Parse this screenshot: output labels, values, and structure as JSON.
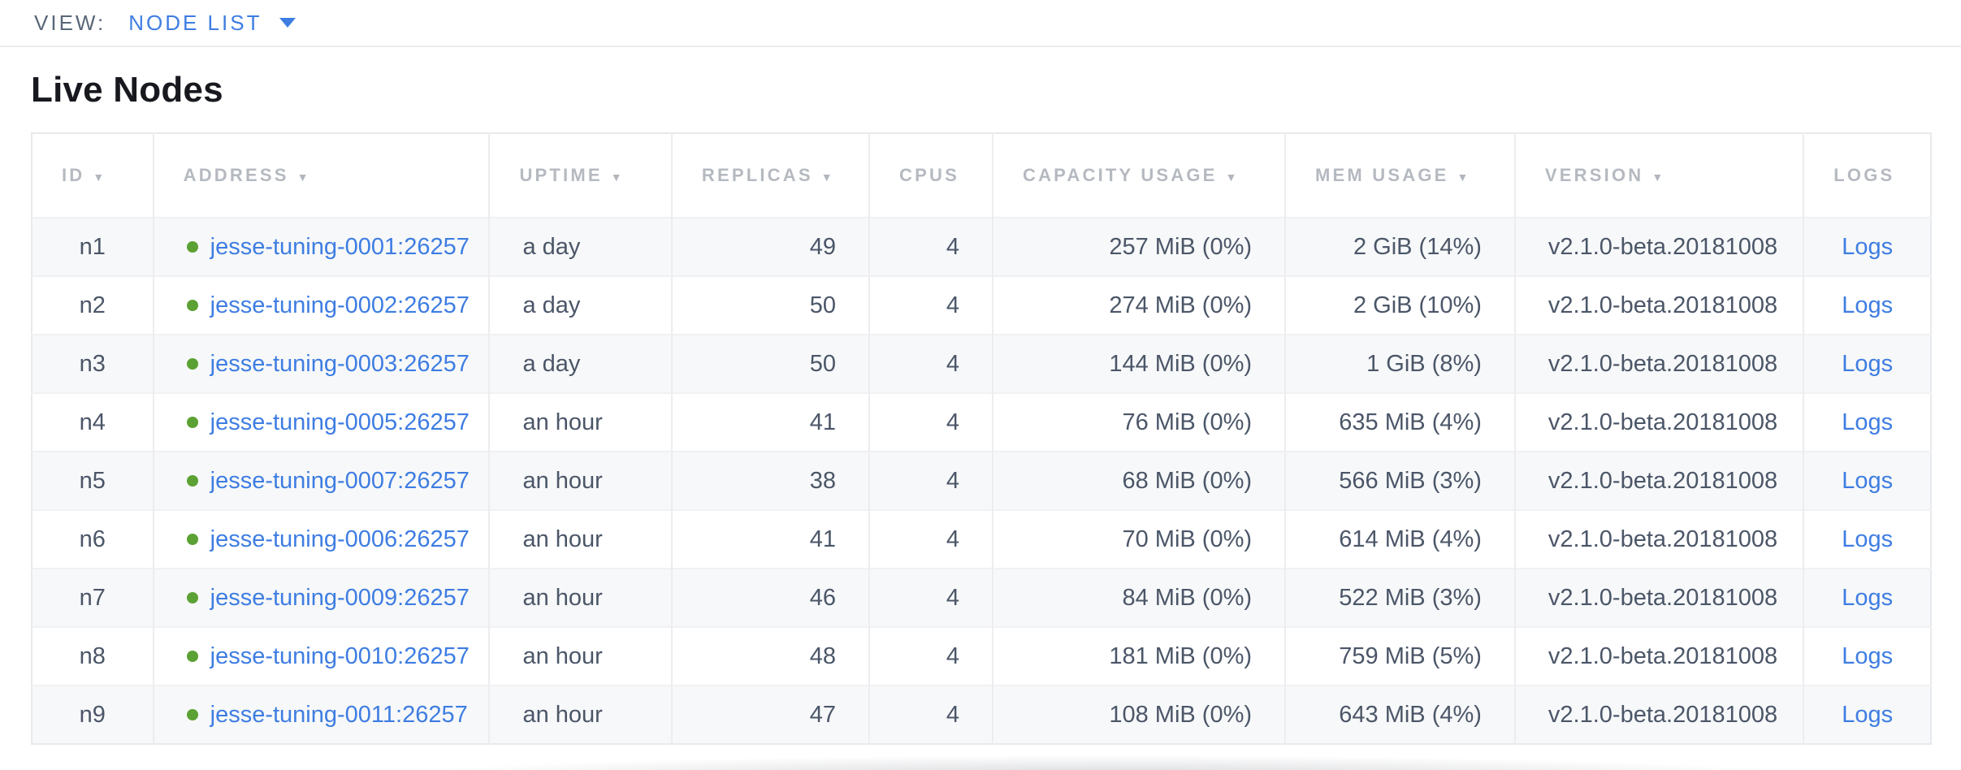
{
  "view_bar": {
    "label": "VIEW:",
    "selected_view": "NODE LIST"
  },
  "page": {
    "title": "Live Nodes"
  },
  "colors": {
    "link_blue": "#3e7de2",
    "live_dot_green": "#5ca134",
    "header_gray": "#b5b9c0",
    "body_text": "#4b5668",
    "row_stripe": "#f7f8f9"
  },
  "table": {
    "columns": [
      {
        "key": "id",
        "label": "ID",
        "sort_arrow": true
      },
      {
        "key": "address",
        "label": "ADDRESS",
        "sort_arrow": true
      },
      {
        "key": "uptime",
        "label": "UPTIME",
        "sort_arrow": true
      },
      {
        "key": "replicas",
        "label": "REPLICAS",
        "sort_arrow": true
      },
      {
        "key": "cpus",
        "label": "CPUS",
        "sort_arrow": false
      },
      {
        "key": "capacity_usage",
        "label": "CAPACITY USAGE",
        "sort_arrow": true
      },
      {
        "key": "mem_usage",
        "label": "MEM USAGE",
        "sort_arrow": true
      },
      {
        "key": "version",
        "label": "VERSION",
        "sort_arrow": true
      },
      {
        "key": "logs",
        "label": "LOGS",
        "sort_arrow": false
      }
    ],
    "rows": [
      {
        "id": "n1",
        "status": "live",
        "address": "jesse-tuning-0001:26257",
        "uptime": "a day",
        "replicas": "49",
        "cpus": "4",
        "capacity_usage": "257 MiB (0%)",
        "mem_usage": "2 GiB (14%)",
        "version": "v2.1.0-beta.20181008",
        "logs": "Logs"
      },
      {
        "id": "n2",
        "status": "live",
        "address": "jesse-tuning-0002:26257",
        "uptime": "a day",
        "replicas": "50",
        "cpus": "4",
        "capacity_usage": "274 MiB (0%)",
        "mem_usage": "2 GiB (10%)",
        "version": "v2.1.0-beta.20181008",
        "logs": "Logs"
      },
      {
        "id": "n3",
        "status": "live",
        "address": "jesse-tuning-0003:26257",
        "uptime": "a day",
        "replicas": "50",
        "cpus": "4",
        "capacity_usage": "144 MiB (0%)",
        "mem_usage": "1 GiB (8%)",
        "version": "v2.1.0-beta.20181008",
        "logs": "Logs"
      },
      {
        "id": "n4",
        "status": "live",
        "address": "jesse-tuning-0005:26257",
        "uptime": "an hour",
        "replicas": "41",
        "cpus": "4",
        "capacity_usage": "76 MiB (0%)",
        "mem_usage": "635 MiB (4%)",
        "version": "v2.1.0-beta.20181008",
        "logs": "Logs"
      },
      {
        "id": "n5",
        "status": "live",
        "address": "jesse-tuning-0007:26257",
        "uptime": "an hour",
        "replicas": "38",
        "cpus": "4",
        "capacity_usage": "68 MiB (0%)",
        "mem_usage": "566 MiB (3%)",
        "version": "v2.1.0-beta.20181008",
        "logs": "Logs"
      },
      {
        "id": "n6",
        "status": "live",
        "address": "jesse-tuning-0006:26257",
        "uptime": "an hour",
        "replicas": "41",
        "cpus": "4",
        "capacity_usage": "70 MiB (0%)",
        "mem_usage": "614 MiB (4%)",
        "version": "v2.1.0-beta.20181008",
        "logs": "Logs"
      },
      {
        "id": "n7",
        "status": "live",
        "address": "jesse-tuning-0009:26257",
        "uptime": "an hour",
        "replicas": "46",
        "cpus": "4",
        "capacity_usage": "84 MiB (0%)",
        "mem_usage": "522 MiB (3%)",
        "version": "v2.1.0-beta.20181008",
        "logs": "Logs"
      },
      {
        "id": "n8",
        "status": "live",
        "address": "jesse-tuning-0010:26257",
        "uptime": "an hour",
        "replicas": "48",
        "cpus": "4",
        "capacity_usage": "181 MiB (0%)",
        "mem_usage": "759 MiB (5%)",
        "version": "v2.1.0-beta.20181008",
        "logs": "Logs"
      },
      {
        "id": "n9",
        "status": "live",
        "address": "jesse-tuning-0011:26257",
        "uptime": "an hour",
        "replicas": "47",
        "cpus": "4",
        "capacity_usage": "108 MiB (0%)",
        "mem_usage": "643 MiB (4%)",
        "version": "v2.1.0-beta.20181008",
        "logs": "Logs"
      }
    ]
  }
}
